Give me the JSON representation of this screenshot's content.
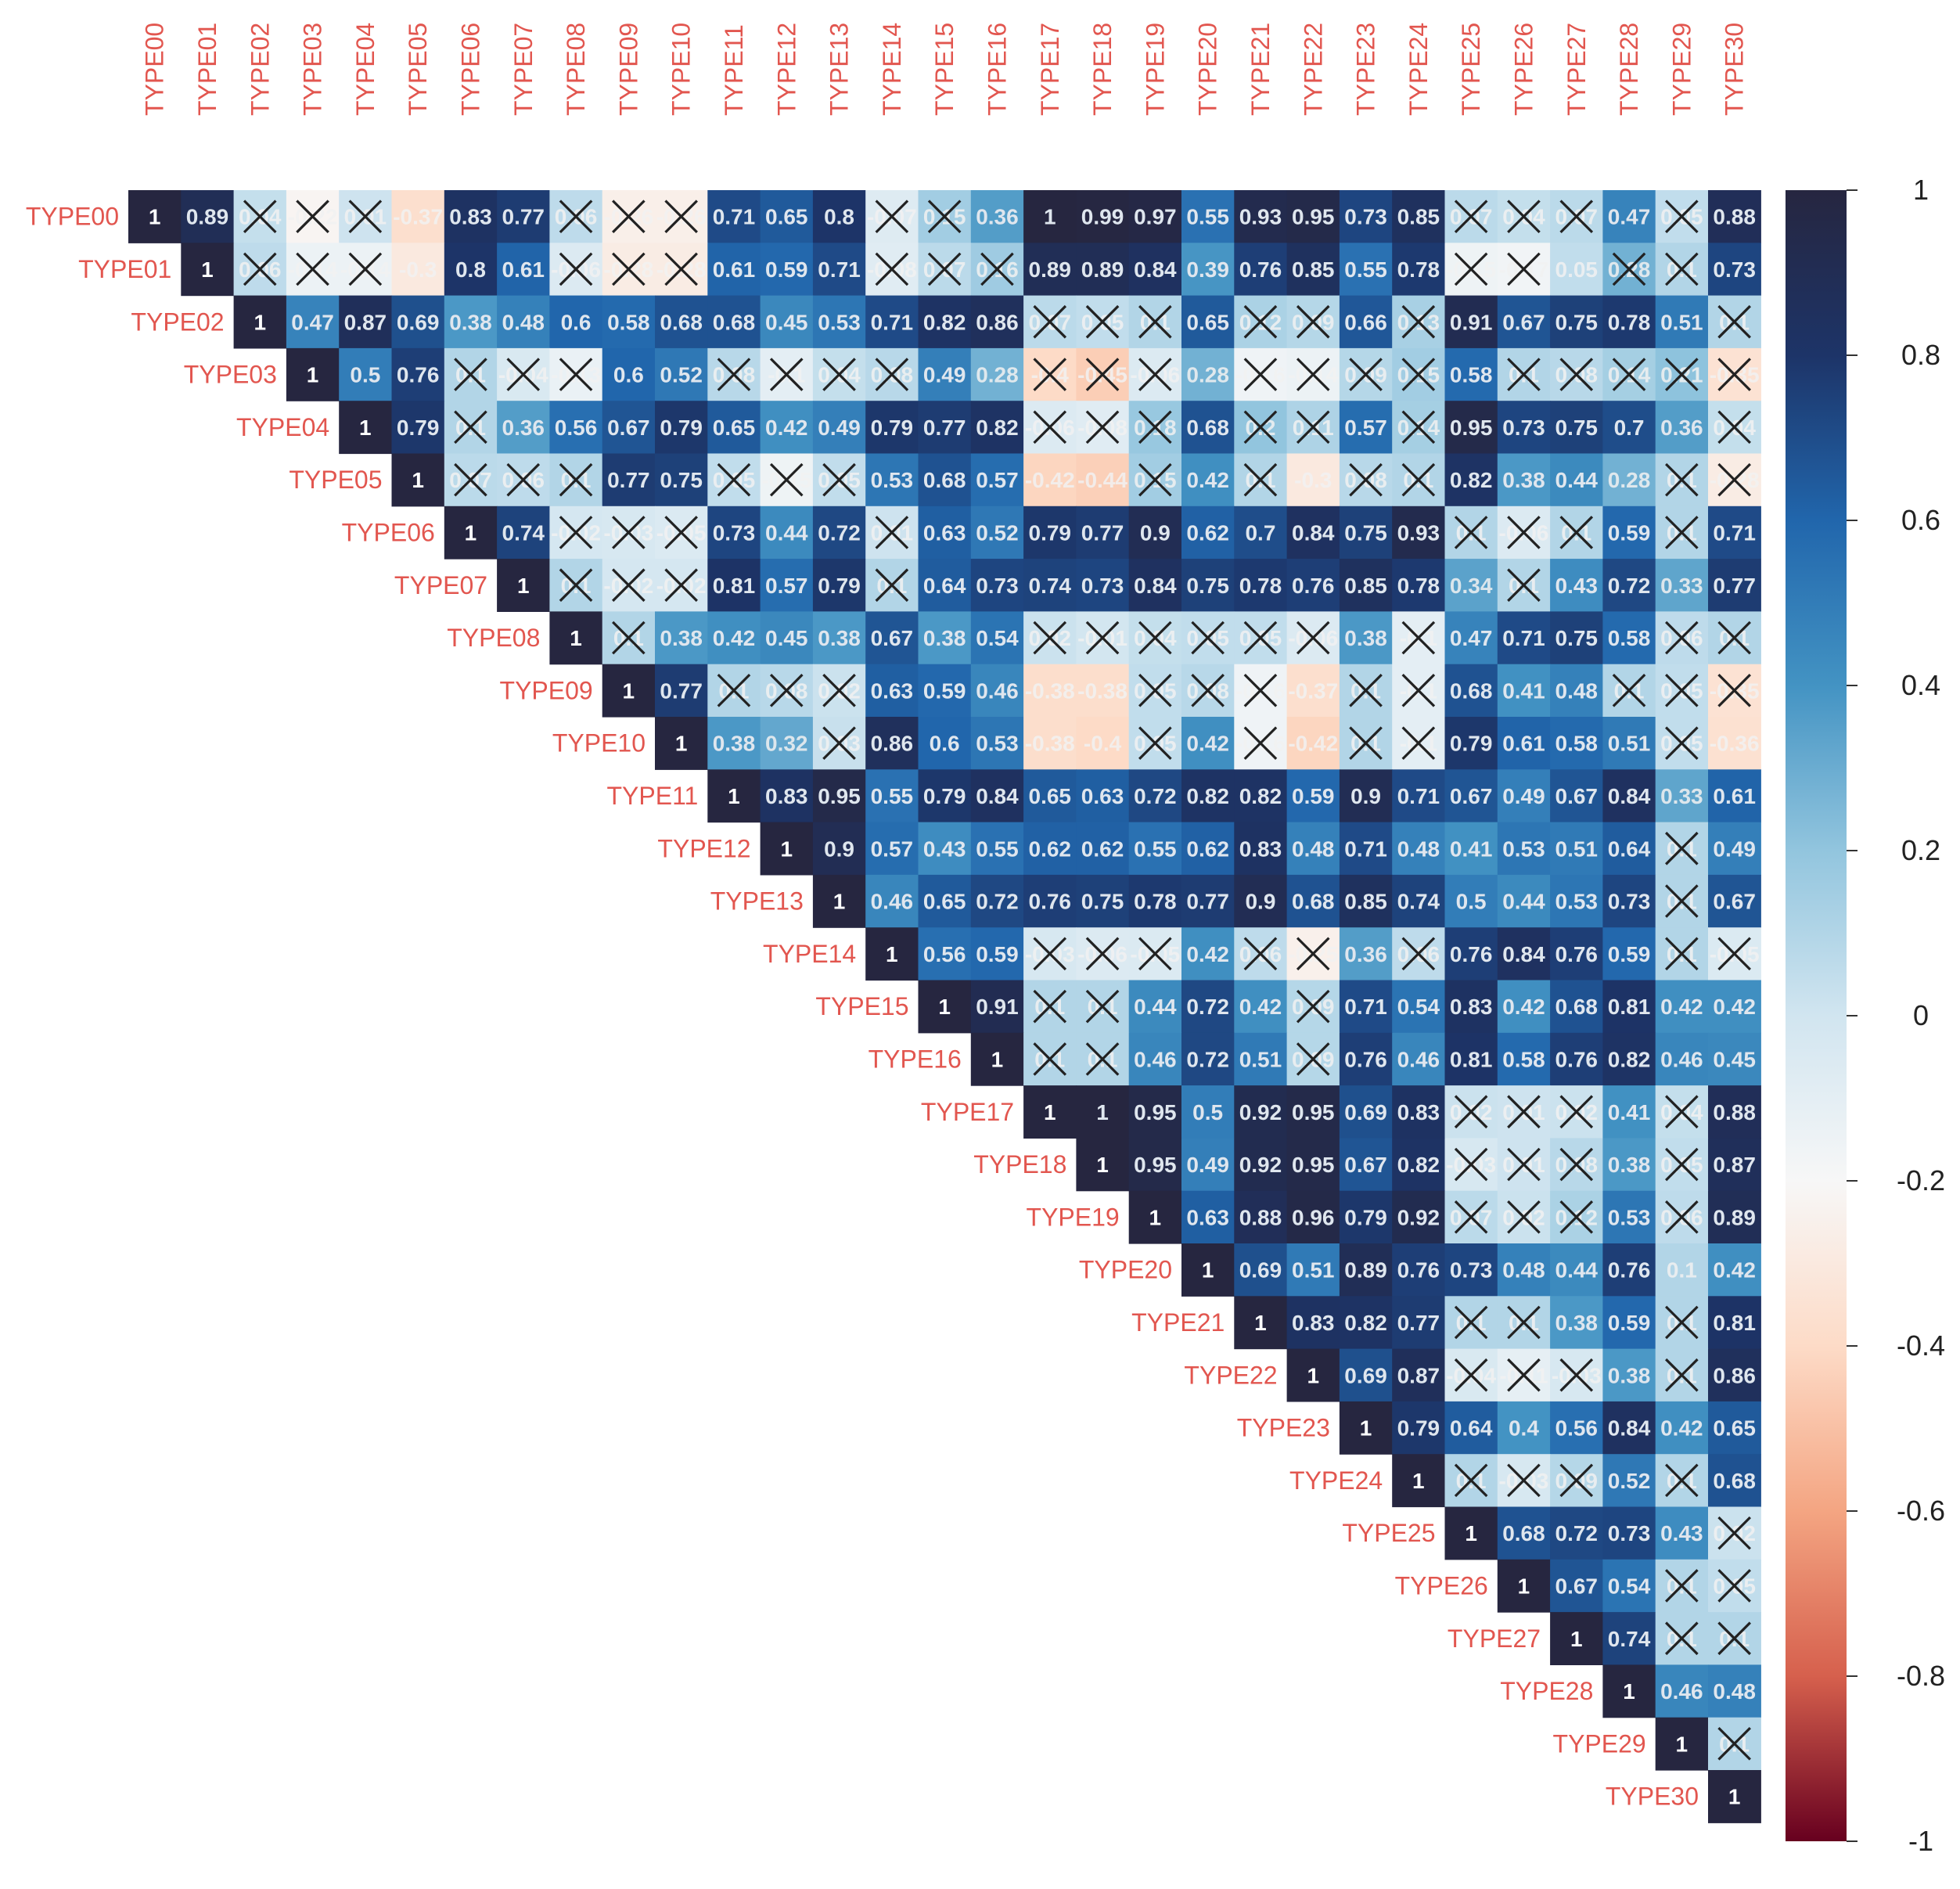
{
  "chart_data": {
    "type": "heatmap",
    "title": "",
    "labels": [
      "TYPE00",
      "TYPE01",
      "TYPE02",
      "TYPE03",
      "TYPE04",
      "TYPE05",
      "TYPE06",
      "TYPE07",
      "TYPE08",
      "TYPE09",
      "TYPE10",
      "TYPE11",
      "TYPE12",
      "TYPE13",
      "TYPE14",
      "TYPE15",
      "TYPE16",
      "TYPE17",
      "TYPE18",
      "TYPE19",
      "TYPE20",
      "TYPE21",
      "TYPE22",
      "TYPE23",
      "TYPE24",
      "TYPE25",
      "TYPE26",
      "TYPE27",
      "TYPE28",
      "TYPE29",
      "TYPE30"
    ],
    "triangle": "upper",
    "colorbar": {
      "range": [
        -1,
        1
      ],
      "ticks": [
        "1",
        "0.8",
        "0.6",
        "0.4",
        "0.2",
        "0",
        "-0.2",
        "-0.4",
        "-0.6",
        "-0.8",
        "-1"
      ],
      "colors_low_to_high": [
        "#67001f",
        "#d6604d",
        "#f4a582",
        "#fddbc7",
        "#f7f7f7",
        "#d1e5f0",
        "#92c5de",
        "#4393c3",
        "#2166ac",
        "#1d3468",
        "#262640"
      ]
    },
    "legend": "colorbar on the right",
    "crossed_marker": "X over non-significant cells",
    "rows": [
      [
        1,
        0.89,
        0.04,
        -0.22,
        0.01,
        -0.37,
        0.83,
        0.77,
        0.06,
        -0.26,
        -0.26,
        0.71,
        0.65,
        0.8,
        -0.07,
        0.15,
        0.36,
        1,
        0.99,
        0.97,
        0.55,
        0.93,
        0.95,
        0.73,
        0.85,
        0.07,
        0.04,
        0.07,
        0.47,
        0.05,
        0.88
      ],
      [
        1,
        0.06,
        -0.14,
        -0.14,
        -0.3,
        0.8,
        0.61,
        -0.06,
        -0.28,
        -0.28,
        0.61,
        0.59,
        0.71,
        -0.08,
        0.07,
        0.16,
        0.89,
        0.89,
        0.84,
        0.39,
        0.76,
        0.85,
        0.55,
        0.78,
        -0.15,
        -0.17,
        0.05,
        0.28,
        0.1,
        0.73
      ],
      [
        1,
        0.47,
        0.87,
        0.69,
        0.38,
        0.48,
        0.6,
        0.58,
        0.68,
        0.68,
        0.45,
        0.53,
        0.71,
        0.82,
        0.86,
        0.07,
        0.05,
        0.1,
        0.65,
        0.12,
        0.09,
        0.66,
        0.13,
        0.91,
        0.67,
        0.75,
        0.78,
        0.51,
        0.1
      ],
      [
        1,
        0.5,
        0.76,
        0.1,
        -0.04,
        -0.13,
        0.6,
        0.52,
        0.08,
        -0.1,
        0.04,
        0.08,
        0.49,
        0.28,
        -0.4,
        -0.45,
        -0.06,
        0.28,
        -0.16,
        -0.14,
        0.09,
        0.15,
        0.58,
        0.1,
        0.08,
        0.14,
        0.21,
        -0.35
      ],
      [
        1,
        0.79,
        0.1,
        0.36,
        0.56,
        0.67,
        0.79,
        0.65,
        0.42,
        0.49,
        0.79,
        0.77,
        0.82,
        -0.06,
        -0.08,
        0.18,
        0.68,
        0.2,
        0.11,
        0.57,
        0.14,
        0.95,
        0.73,
        0.75,
        0.7,
        0.36,
        0.04
      ],
      [
        1,
        0.07,
        0.06,
        0.1,
        0.77,
        0.75,
        0.05,
        -0.15,
        0.05,
        0.53,
        0.68,
        0.57,
        -0.42,
        -0.44,
        0.15,
        0.42,
        0.1,
        -0.3,
        0.08,
        0.1,
        0.82,
        0.38,
        0.44,
        0.28,
        0.1,
        -0.28
      ],
      [
        1,
        0.74,
        -0.02,
        -0.03,
        -0.05,
        0.73,
        0.44,
        0.72,
        0.01,
        0.63,
        0.52,
        0.79,
        0.77,
        0.9,
        0.62,
        0.7,
        0.84,
        0.75,
        0.93,
        0.1,
        -0.06,
        0.1,
        0.59,
        0.1,
        0.71
      ],
      [
        1,
        0.1,
        -0.02,
        -0.02,
        0.81,
        0.57,
        0.79,
        0.1,
        0.64,
        0.73,
        0.74,
        0.73,
        0.84,
        0.75,
        0.78,
        0.76,
        0.85,
        0.78,
        0.34,
        0.1,
        0.43,
        0.72,
        0.33,
        0.77
      ],
      [
        1,
        0.1,
        0.38,
        0.42,
        0.45,
        0.38,
        0.67,
        0.38,
        0.54,
        0.02,
        -0.01,
        0.04,
        0.05,
        0.05,
        -0.06,
        0.38,
        -0.1,
        0.47,
        0.71,
        0.75,
        0.58,
        0.06,
        0.1
      ],
      [
        1,
        0.77,
        0.1,
        0.08,
        0.02,
        0.63,
        0.59,
        0.46,
        -0.38,
        -0.38,
        0.05,
        0.08,
        -0.16,
        -0.37,
        0.1,
        -0.1,
        0.68,
        0.41,
        0.48,
        0.1,
        0.05,
        -0.35
      ],
      [
        1,
        0.38,
        0.32,
        0.03,
        0.86,
        0.6,
        0.53,
        -0.38,
        -0.4,
        0.05,
        0.42,
        -0.16,
        -0.42,
        0.1,
        -0.1,
        0.79,
        0.61,
        0.58,
        0.51,
        0.05,
        -0.36
      ],
      [
        1,
        0.83,
        0.95,
        0.55,
        0.79,
        0.84,
        0.65,
        0.63,
        0.72,
        0.82,
        0.82,
        0.59,
        0.9,
        0.71,
        0.67,
        0.49,
        0.67,
        0.84,
        0.33,
        0.61
      ],
      [
        1,
        0.9,
        0.57,
        0.43,
        0.55,
        0.62,
        0.62,
        0.55,
        0.62,
        0.83,
        0.48,
        0.71,
        0.48,
        0.41,
        0.53,
        0.51,
        0.64,
        0.1,
        0.49
      ],
      [
        1,
        0.46,
        0.65,
        0.72,
        0.76,
        0.75,
        0.78,
        0.77,
        0.9,
        0.68,
        0.85,
        0.74,
        0.5,
        0.44,
        0.53,
        0.73,
        0.1,
        0.67
      ],
      [
        1,
        0.56,
        0.59,
        -0.03,
        -0.06,
        -0.05,
        0.42,
        0.06,
        -0.25,
        0.36,
        0.06,
        0.76,
        0.84,
        0.76,
        0.59,
        0.1,
        -0.05
      ],
      [
        1,
        0.91,
        0.1,
        0.1,
        0.44,
        0.72,
        0.42,
        0.09,
        0.71,
        0.54,
        0.83,
        0.42,
        0.68,
        0.81,
        0.42,
        0.42
      ],
      [
        1,
        0.1,
        0.1,
        0.46,
        0.72,
        0.51,
        0.09,
        0.76,
        0.46,
        0.81,
        0.58,
        0.76,
        0.82,
        0.46,
        0.45
      ],
      [
        1,
        1,
        0.95,
        0.5,
        0.92,
        0.95,
        0.69,
        0.83,
        0.02,
        0.01,
        0.02,
        0.41,
        0.04,
        0.88
      ],
      [
        1,
        0.95,
        0.49,
        0.92,
        0.95,
        0.67,
        0.82,
        -0.03,
        0.01,
        0.08,
        0.38,
        0.05,
        0.87
      ],
      [
        1,
        0.63,
        0.88,
        0.96,
        0.79,
        0.92,
        0.07,
        0.02,
        0.12,
        0.53,
        0.06,
        0.89
      ],
      [
        1,
        0.69,
        0.51,
        0.89,
        0.76,
        0.73,
        0.48,
        0.44,
        0.76,
        0.1,
        0.42
      ],
      [
        1,
        0.83,
        0.82,
        0.77,
        0.1,
        0.1,
        0.38,
        0.59,
        0.1,
        0.81
      ],
      [
        1,
        0.69,
        0.87,
        -0.04,
        -0.11,
        -0.03,
        0.38,
        0.1,
        0.86
      ],
      [
        1,
        0.79,
        0.64,
        0.4,
        0.56,
        0.84,
        0.42,
        0.65
      ],
      [
        1,
        0.1,
        -0.03,
        0.09,
        0.52,
        0.1,
        0.68
      ],
      [
        1,
        0.68,
        0.72,
        0.73,
        0.43,
        0.02
      ],
      [
        1,
        0.67,
        0.54,
        0.1,
        0.05
      ],
      [
        1,
        0.74,
        0.1,
        0.1
      ],
      [
        1,
        0.46,
        0.48
      ],
      [
        1,
        0.1
      ],
      [
        1
      ]
    ],
    "crossed_cells": [
      [
        0,
        2
      ],
      [
        0,
        3
      ],
      [
        0,
        4
      ],
      [
        0,
        8
      ],
      [
        0,
        9
      ],
      [
        0,
        10
      ],
      [
        0,
        14
      ],
      [
        0,
        15
      ],
      [
        0,
        25
      ],
      [
        0,
        26
      ],
      [
        0,
        27
      ],
      [
        0,
        29
      ],
      [
        1,
        2
      ],
      [
        1,
        3
      ],
      [
        1,
        4
      ],
      [
        1,
        8
      ],
      [
        1,
        9
      ],
      [
        1,
        10
      ],
      [
        1,
        14
      ],
      [
        1,
        15
      ],
      [
        1,
        16
      ],
      [
        1,
        25
      ],
      [
        1,
        26
      ],
      [
        1,
        28
      ],
      [
        1,
        29
      ],
      [
        2,
        17
      ],
      [
        2,
        18
      ],
      [
        2,
        19
      ],
      [
        2,
        21
      ],
      [
        2,
        22
      ],
      [
        2,
        24
      ],
      [
        2,
        30
      ],
      [
        3,
        6
      ],
      [
        3,
        7
      ],
      [
        3,
        8
      ],
      [
        3,
        11
      ],
      [
        3,
        12
      ],
      [
        3,
        13
      ],
      [
        3,
        14
      ],
      [
        3,
        17
      ],
      [
        3,
        18
      ],
      [
        3,
        19
      ],
      [
        3,
        21
      ],
      [
        3,
        22
      ],
      [
        3,
        23
      ],
      [
        3,
        24
      ],
      [
        3,
        26
      ],
      [
        3,
        27
      ],
      [
        3,
        28
      ],
      [
        3,
        29
      ],
      [
        3,
        30
      ],
      [
        4,
        6
      ],
      [
        4,
        17
      ],
      [
        4,
        18
      ],
      [
        4,
        19
      ],
      [
        4,
        21
      ],
      [
        4,
        22
      ],
      [
        4,
        24
      ],
      [
        4,
        30
      ],
      [
        5,
        6
      ],
      [
        5,
        7
      ],
      [
        5,
        8
      ],
      [
        5,
        11
      ],
      [
        5,
        12
      ],
      [
        5,
        13
      ],
      [
        5,
        19
      ],
      [
        5,
        21
      ],
      [
        5,
        23
      ],
      [
        5,
        24
      ],
      [
        5,
        29
      ],
      [
        5,
        30
      ],
      [
        6,
        8
      ],
      [
        6,
        9
      ],
      [
        6,
        10
      ],
      [
        6,
        14
      ],
      [
        6,
        25
      ],
      [
        6,
        26
      ],
      [
        6,
        27
      ],
      [
        6,
        29
      ],
      [
        7,
        8
      ],
      [
        7,
        9
      ],
      [
        7,
        10
      ],
      [
        7,
        14
      ],
      [
        7,
        26
      ],
      [
        8,
        9
      ],
      [
        8,
        17
      ],
      [
        8,
        18
      ],
      [
        8,
        19
      ],
      [
        8,
        20
      ],
      [
        8,
        21
      ],
      [
        8,
        22
      ],
      [
        8,
        24
      ],
      [
        8,
        29
      ],
      [
        8,
        30
      ],
      [
        9,
        11
      ],
      [
        9,
        12
      ],
      [
        9,
        13
      ],
      [
        9,
        19
      ],
      [
        9,
        20
      ],
      [
        9,
        21
      ],
      [
        9,
        23
      ],
      [
        9,
        24
      ],
      [
        9,
        28
      ],
      [
        9,
        29
      ],
      [
        9,
        30
      ],
      [
        10,
        13
      ],
      [
        10,
        19
      ],
      [
        10,
        21
      ],
      [
        10,
        23
      ],
      [
        10,
        24
      ],
      [
        10,
        29
      ],
      [
        12,
        29
      ],
      [
        13,
        29
      ],
      [
        14,
        17
      ],
      [
        14,
        18
      ],
      [
        14,
        19
      ],
      [
        14,
        21
      ],
      [
        14,
        22
      ],
      [
        14,
        24
      ],
      [
        14,
        29
      ],
      [
        14,
        30
      ],
      [
        15,
        17
      ],
      [
        15,
        18
      ],
      [
        15,
        22
      ],
      [
        16,
        17
      ],
      [
        16,
        18
      ],
      [
        16,
        22
      ],
      [
        17,
        25
      ],
      [
        17,
        26
      ],
      [
        17,
        27
      ],
      [
        17,
        29
      ],
      [
        18,
        25
      ],
      [
        18,
        26
      ],
      [
        18,
        27
      ],
      [
        18,
        29
      ],
      [
        19,
        25
      ],
      [
        19,
        26
      ],
      [
        19,
        27
      ],
      [
        19,
        29
      ],
      [
        21,
        25
      ],
      [
        21,
        26
      ],
      [
        21,
        29
      ],
      [
        22,
        25
      ],
      [
        22,
        26
      ],
      [
        22,
        27
      ],
      [
        22,
        29
      ],
      [
        24,
        25
      ],
      [
        24,
        26
      ],
      [
        24,
        27
      ],
      [
        24,
        29
      ],
      [
        25,
        30
      ],
      [
        26,
        29
      ],
      [
        26,
        30
      ],
      [
        27,
        29
      ],
      [
        27,
        30
      ],
      [
        29,
        30
      ]
    ]
  }
}
